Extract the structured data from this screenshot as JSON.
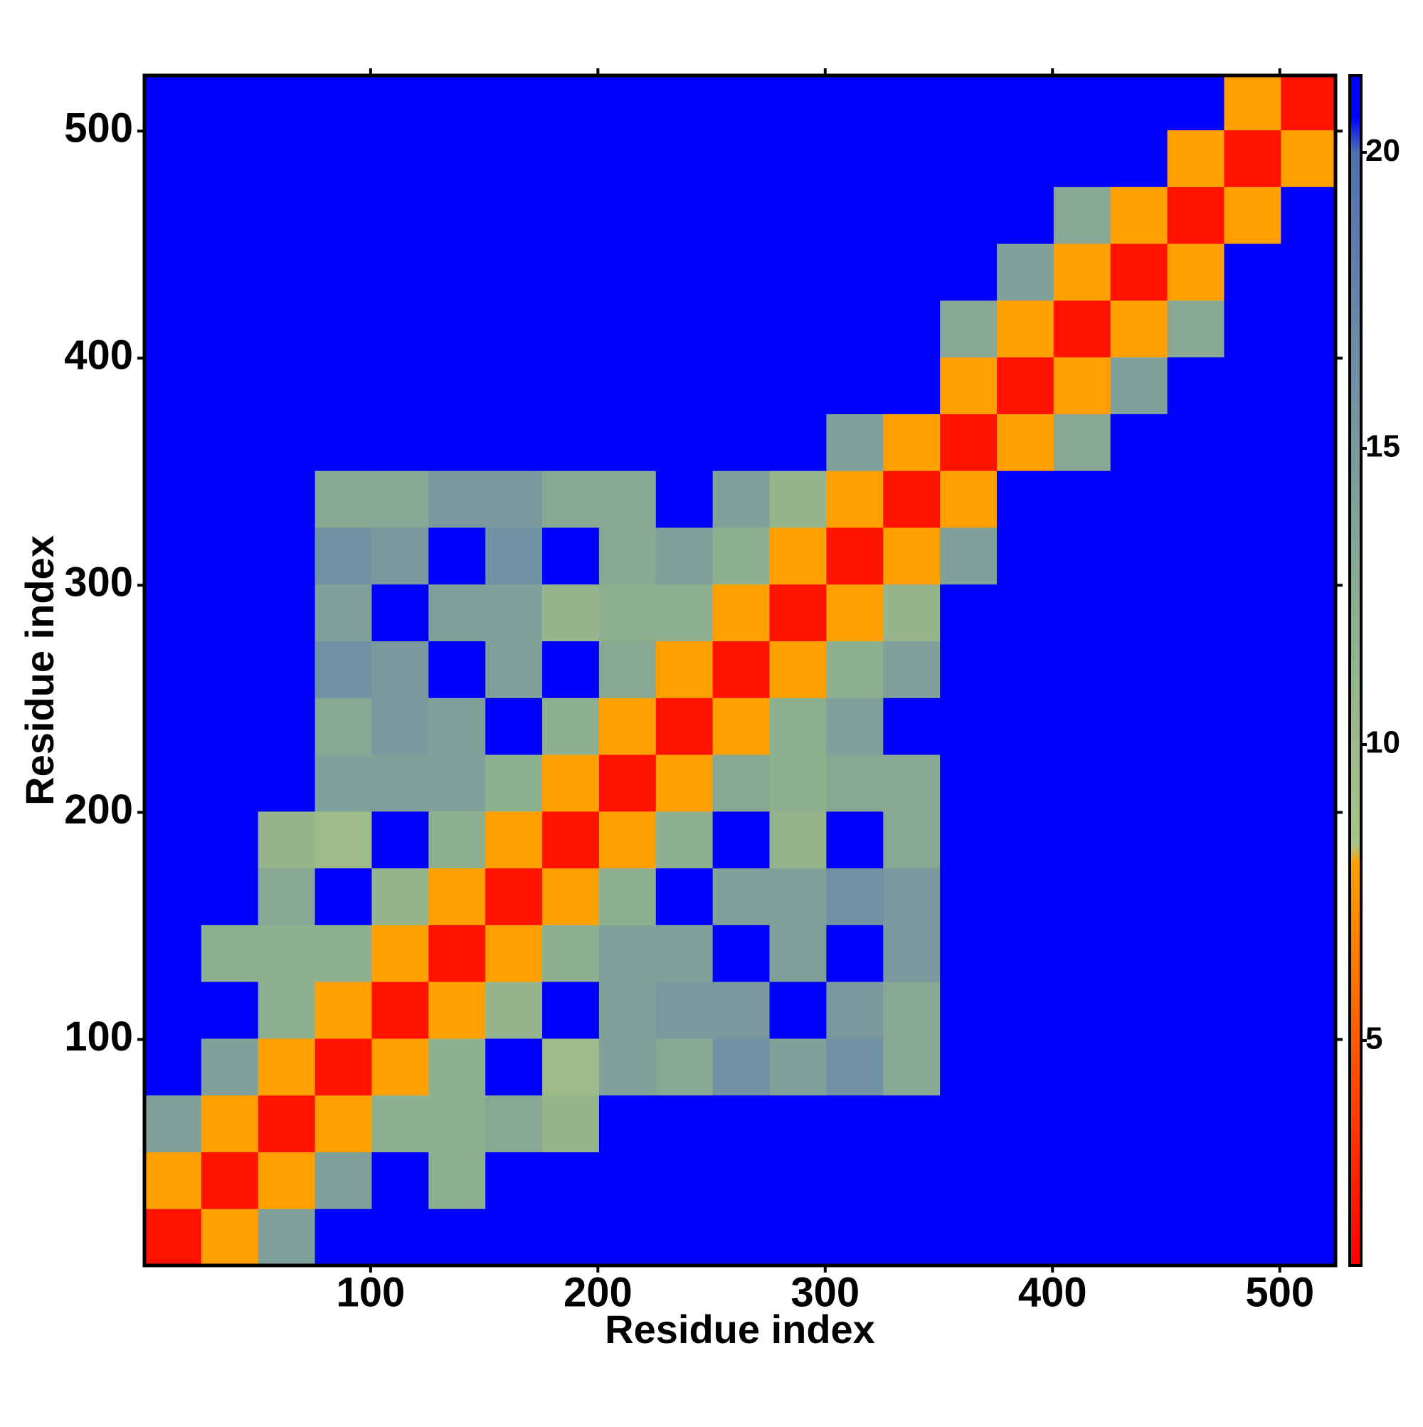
{
  "chart_data": {
    "type": "heatmap",
    "x_label": "Residue index",
    "y_label": "Residue index",
    "xbins": [
      0.5,
      25.5,
      50.5,
      75.5,
      100.5,
      125.5,
      150.5,
      175.5,
      200.5,
      225.5,
      250.5,
      275.5,
      300.5,
      325.5,
      350.5,
      375.5,
      400.5,
      425.5,
      450.5,
      475.5,
      500.5,
      524.5
    ],
    "ybins": [
      0.5,
      25.5,
      50.5,
      75.5,
      100.5,
      125.5,
      150.5,
      175.5,
      200.5,
      225.5,
      250.5,
      275.5,
      300.5,
      325.5,
      350.5,
      375.5,
      400.5,
      425.5,
      450.5,
      475.5,
      500.5,
      524.5
    ],
    "z": [
      [
        2,
        8,
        14,
        21,
        21,
        21,
        21,
        21,
        21,
        21,
        21,
        21,
        21,
        21,
        21,
        21,
        21,
        21,
        21,
        21,
        21
      ],
      [
        8,
        2,
        8,
        14,
        21,
        12,
        21,
        21,
        21,
        21,
        21,
        21,
        21,
        21,
        21,
        21,
        21,
        21,
        21,
        21,
        21
      ],
      [
        14,
        8,
        2,
        8,
        12,
        12,
        13,
        11,
        21,
        21,
        21,
        21,
        21,
        21,
        21,
        21,
        21,
        21,
        21,
        21,
        21
      ],
      [
        21,
        14,
        8,
        2,
        8,
        12,
        21,
        10,
        14,
        13,
        16,
        14,
        16,
        13,
        21,
        21,
        21,
        21,
        21,
        21,
        21
      ],
      [
        21,
        21,
        12,
        8,
        2,
        8,
        11,
        21,
        14,
        15,
        15,
        21,
        15,
        13,
        21,
        21,
        21,
        21,
        21,
        21,
        21
      ],
      [
        21,
        12,
        12,
        12,
        8,
        2,
        8,
        12,
        14,
        14,
        21,
        14,
        21,
        15,
        21,
        21,
        21,
        21,
        21,
        21,
        21
      ],
      [
        21,
        21,
        13,
        21,
        11,
        8,
        2,
        8,
        12,
        21,
        14,
        14,
        16,
        15,
        21,
        21,
        21,
        21,
        21,
        21,
        21
      ],
      [
        21,
        21,
        11,
        10,
        21,
        12,
        8,
        2,
        8,
        12,
        21,
        11,
        21,
        13,
        21,
        21,
        21,
        21,
        21,
        21,
        21
      ],
      [
        21,
        21,
        21,
        14,
        14,
        14,
        12,
        8,
        2,
        8,
        13,
        12,
        13,
        13,
        21,
        21,
        21,
        21,
        21,
        21,
        21
      ],
      [
        21,
        21,
        21,
        13,
        15,
        14,
        21,
        12,
        8,
        2,
        8,
        12,
        14,
        21,
        21,
        21,
        21,
        21,
        21,
        21,
        21
      ],
      [
        21,
        21,
        21,
        16,
        15,
        21,
        14,
        21,
        13,
        8,
        2,
        8,
        12,
        14,
        21,
        21,
        21,
        21,
        21,
        21,
        21
      ],
      [
        21,
        21,
        21,
        14,
        21,
        14,
        14,
        11,
        12,
        12,
        8,
        2,
        8,
        11,
        21,
        21,
        21,
        21,
        21,
        21,
        21
      ],
      [
        21,
        21,
        21,
        16,
        15,
        21,
        16,
        21,
        13,
        14,
        12,
        8,
        2,
        8,
        14,
        21,
        21,
        21,
        21,
        21,
        21
      ],
      [
        21,
        21,
        21,
        13,
        13,
        15,
        15,
        13,
        13,
        21,
        14,
        11,
        8,
        2,
        8,
        21,
        21,
        21,
        21,
        21,
        21
      ],
      [
        21,
        21,
        21,
        21,
        21,
        21,
        21,
        21,
        21,
        21,
        21,
        21,
        14,
        8,
        2,
        8,
        13,
        21,
        21,
        21,
        21
      ],
      [
        21,
        21,
        21,
        21,
        21,
        21,
        21,
        21,
        21,
        21,
        21,
        21,
        21,
        21,
        8,
        2,
        8,
        14,
        21,
        21,
        21
      ],
      [
        21,
        21,
        21,
        21,
        21,
        21,
        21,
        21,
        21,
        21,
        21,
        21,
        21,
        21,
        13,
        8,
        2,
        8,
        13,
        21,
        21
      ],
      [
        21,
        21,
        21,
        21,
        21,
        21,
        21,
        21,
        21,
        21,
        21,
        21,
        21,
        21,
        21,
        14,
        8,
        2,
        8,
        21,
        21
      ],
      [
        21,
        21,
        21,
        21,
        21,
        21,
        21,
        21,
        21,
        21,
        21,
        21,
        21,
        21,
        21,
        21,
        13,
        8,
        2,
        8,
        21
      ],
      [
        21,
        21,
        21,
        21,
        21,
        21,
        21,
        21,
        21,
        21,
        21,
        21,
        21,
        21,
        21,
        21,
        21,
        21,
        8,
        2,
        8
      ],
      [
        21,
        21,
        21,
        21,
        21,
        21,
        21,
        21,
        21,
        21,
        21,
        21,
        21,
        21,
        21,
        21,
        21,
        21,
        21,
        8,
        2
      ]
    ],
    "xlim": [
      0.5,
      524.5
    ],
    "ylim": [
      0.5,
      524.5
    ],
    "xticks": [
      100,
      200,
      300,
      400,
      500
    ],
    "yticks": [
      100,
      200,
      300,
      400,
      500
    ],
    "zlim": [
      1.2,
      21.3
    ],
    "colorbar_ticks": [
      5,
      10,
      15,
      20
    ],
    "colorscale": [
      [
        1.2,
        "#ff0000"
      ],
      [
        5,
        "#ff5a00"
      ],
      [
        8,
        "#ffa000"
      ],
      [
        8.3,
        "#a8c488"
      ],
      [
        12,
        "#8fb08f"
      ],
      [
        17,
        "#6a8aa8"
      ],
      [
        20,
        "#5070b0"
      ],
      [
        20.6,
        "#0000ff"
      ],
      [
        21.3,
        "#0000ff"
      ]
    ]
  }
}
